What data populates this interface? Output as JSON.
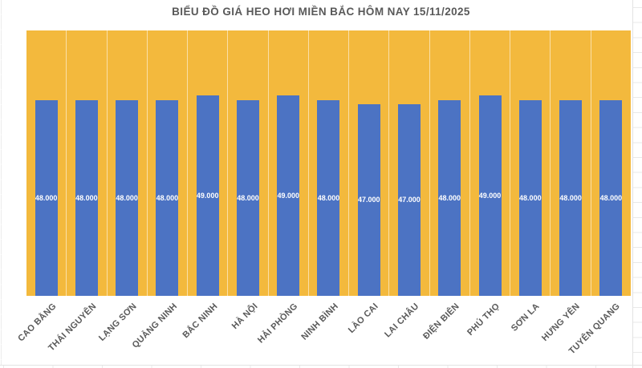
{
  "title": "BIỂU ĐỒ GIÁ HEO HƠI MIỀN BẮC HÔM NAY 15/11/2025",
  "colors": {
    "bar": "#4C73C3",
    "plot_bg": "#F3B93D",
    "title_text": "#595959",
    "axis_text": "#595959",
    "bar_label": "#FFFFFF",
    "grid_line": "rgba(255,255,255,0.55)",
    "sheet_line": "#E3E3E3"
  },
  "chart_data": {
    "type": "bar",
    "title": "BIỂU ĐỒ GIÁ HEO HƠI MIỀN BẮC HÔM NAY 15/11/2025",
    "categories": [
      "CAO BẰNG",
      "THÁI NGUYÊN",
      "LẠNG SƠN",
      "QUẢNG NINH",
      "BẮC NINH",
      "HÀ NỘI",
      "HẢI PHÒNG",
      "NINH BÌNH",
      "LÀO CAI",
      "LAI CHÂU",
      "ĐIỆN BIÊN",
      "PHÚ THỌ",
      "SƠN LA",
      "HƯNG YÊN",
      "TUYÊN QUANG"
    ],
    "values": [
      48000,
      48000,
      48000,
      48000,
      49000,
      48000,
      49000,
      48000,
      47000,
      47000,
      48000,
      49000,
      48000,
      48000,
      48000
    ],
    "value_labels": [
      "48.000",
      "48.000",
      "48.000",
      "48.000",
      "49.000",
      "48.000",
      "49.000",
      "48.000",
      "47.000",
      "47.000",
      "48.000",
      "49.000",
      "48.000",
      "48.000",
      "48.000"
    ],
    "xlabel": "",
    "ylabel": "",
    "ylim": [
      0,
      65000
    ],
    "grid": "vertical category separators on yellow plot background",
    "legend_position": "none",
    "bar_label_position": "inside-center",
    "x_tick_rotation_deg": 45
  }
}
